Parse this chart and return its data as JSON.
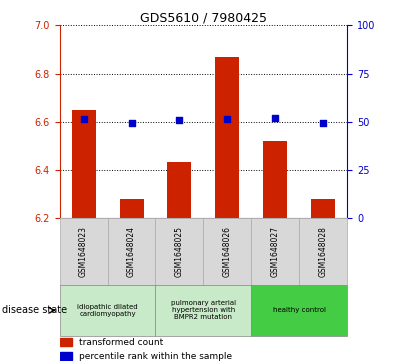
{
  "title": "GDS5610 / 7980425",
  "samples": [
    "GSM1648023",
    "GSM1648024",
    "GSM1648025",
    "GSM1648026",
    "GSM1648027",
    "GSM1648028"
  ],
  "bar_values": [
    6.65,
    6.28,
    6.43,
    6.87,
    6.52,
    6.28
  ],
  "dot_values": [
    51.5,
    49.5,
    50.8,
    51.5,
    51.8,
    49.5
  ],
  "ylim_left": [
    6.2,
    7.0
  ],
  "ylim_right": [
    0,
    100
  ],
  "yticks_left": [
    6.2,
    6.4,
    6.6,
    6.8,
    7.0
  ],
  "yticks_right": [
    0,
    25,
    50,
    75,
    100
  ],
  "bar_color": "#cc2200",
  "dot_color": "#0000cc",
  "bar_bottom": 6.2,
  "group_labels": [
    "idiopathic dilated\ncardiomyopathy",
    "pulmonary arterial\nhypertension with\nBMPR2 mutation",
    "healthy control"
  ],
  "group_ranges": [
    [
      0,
      2
    ],
    [
      2,
      4
    ],
    [
      4,
      6
    ]
  ],
  "group_bg": [
    "#c8eac8",
    "#c8eac8",
    "#44cc44"
  ],
  "legend_labels": [
    "transformed count",
    "percentile rank within the sample"
  ],
  "legend_colors": [
    "#cc2200",
    "#0000cc"
  ],
  "disease_state_label": "disease state",
  "tick_color_left": "#cc2200",
  "tick_color_right": "#0000cc",
  "sample_bg_color": "#d8d8d8",
  "sample_edge_color": "#aaaaaa"
}
